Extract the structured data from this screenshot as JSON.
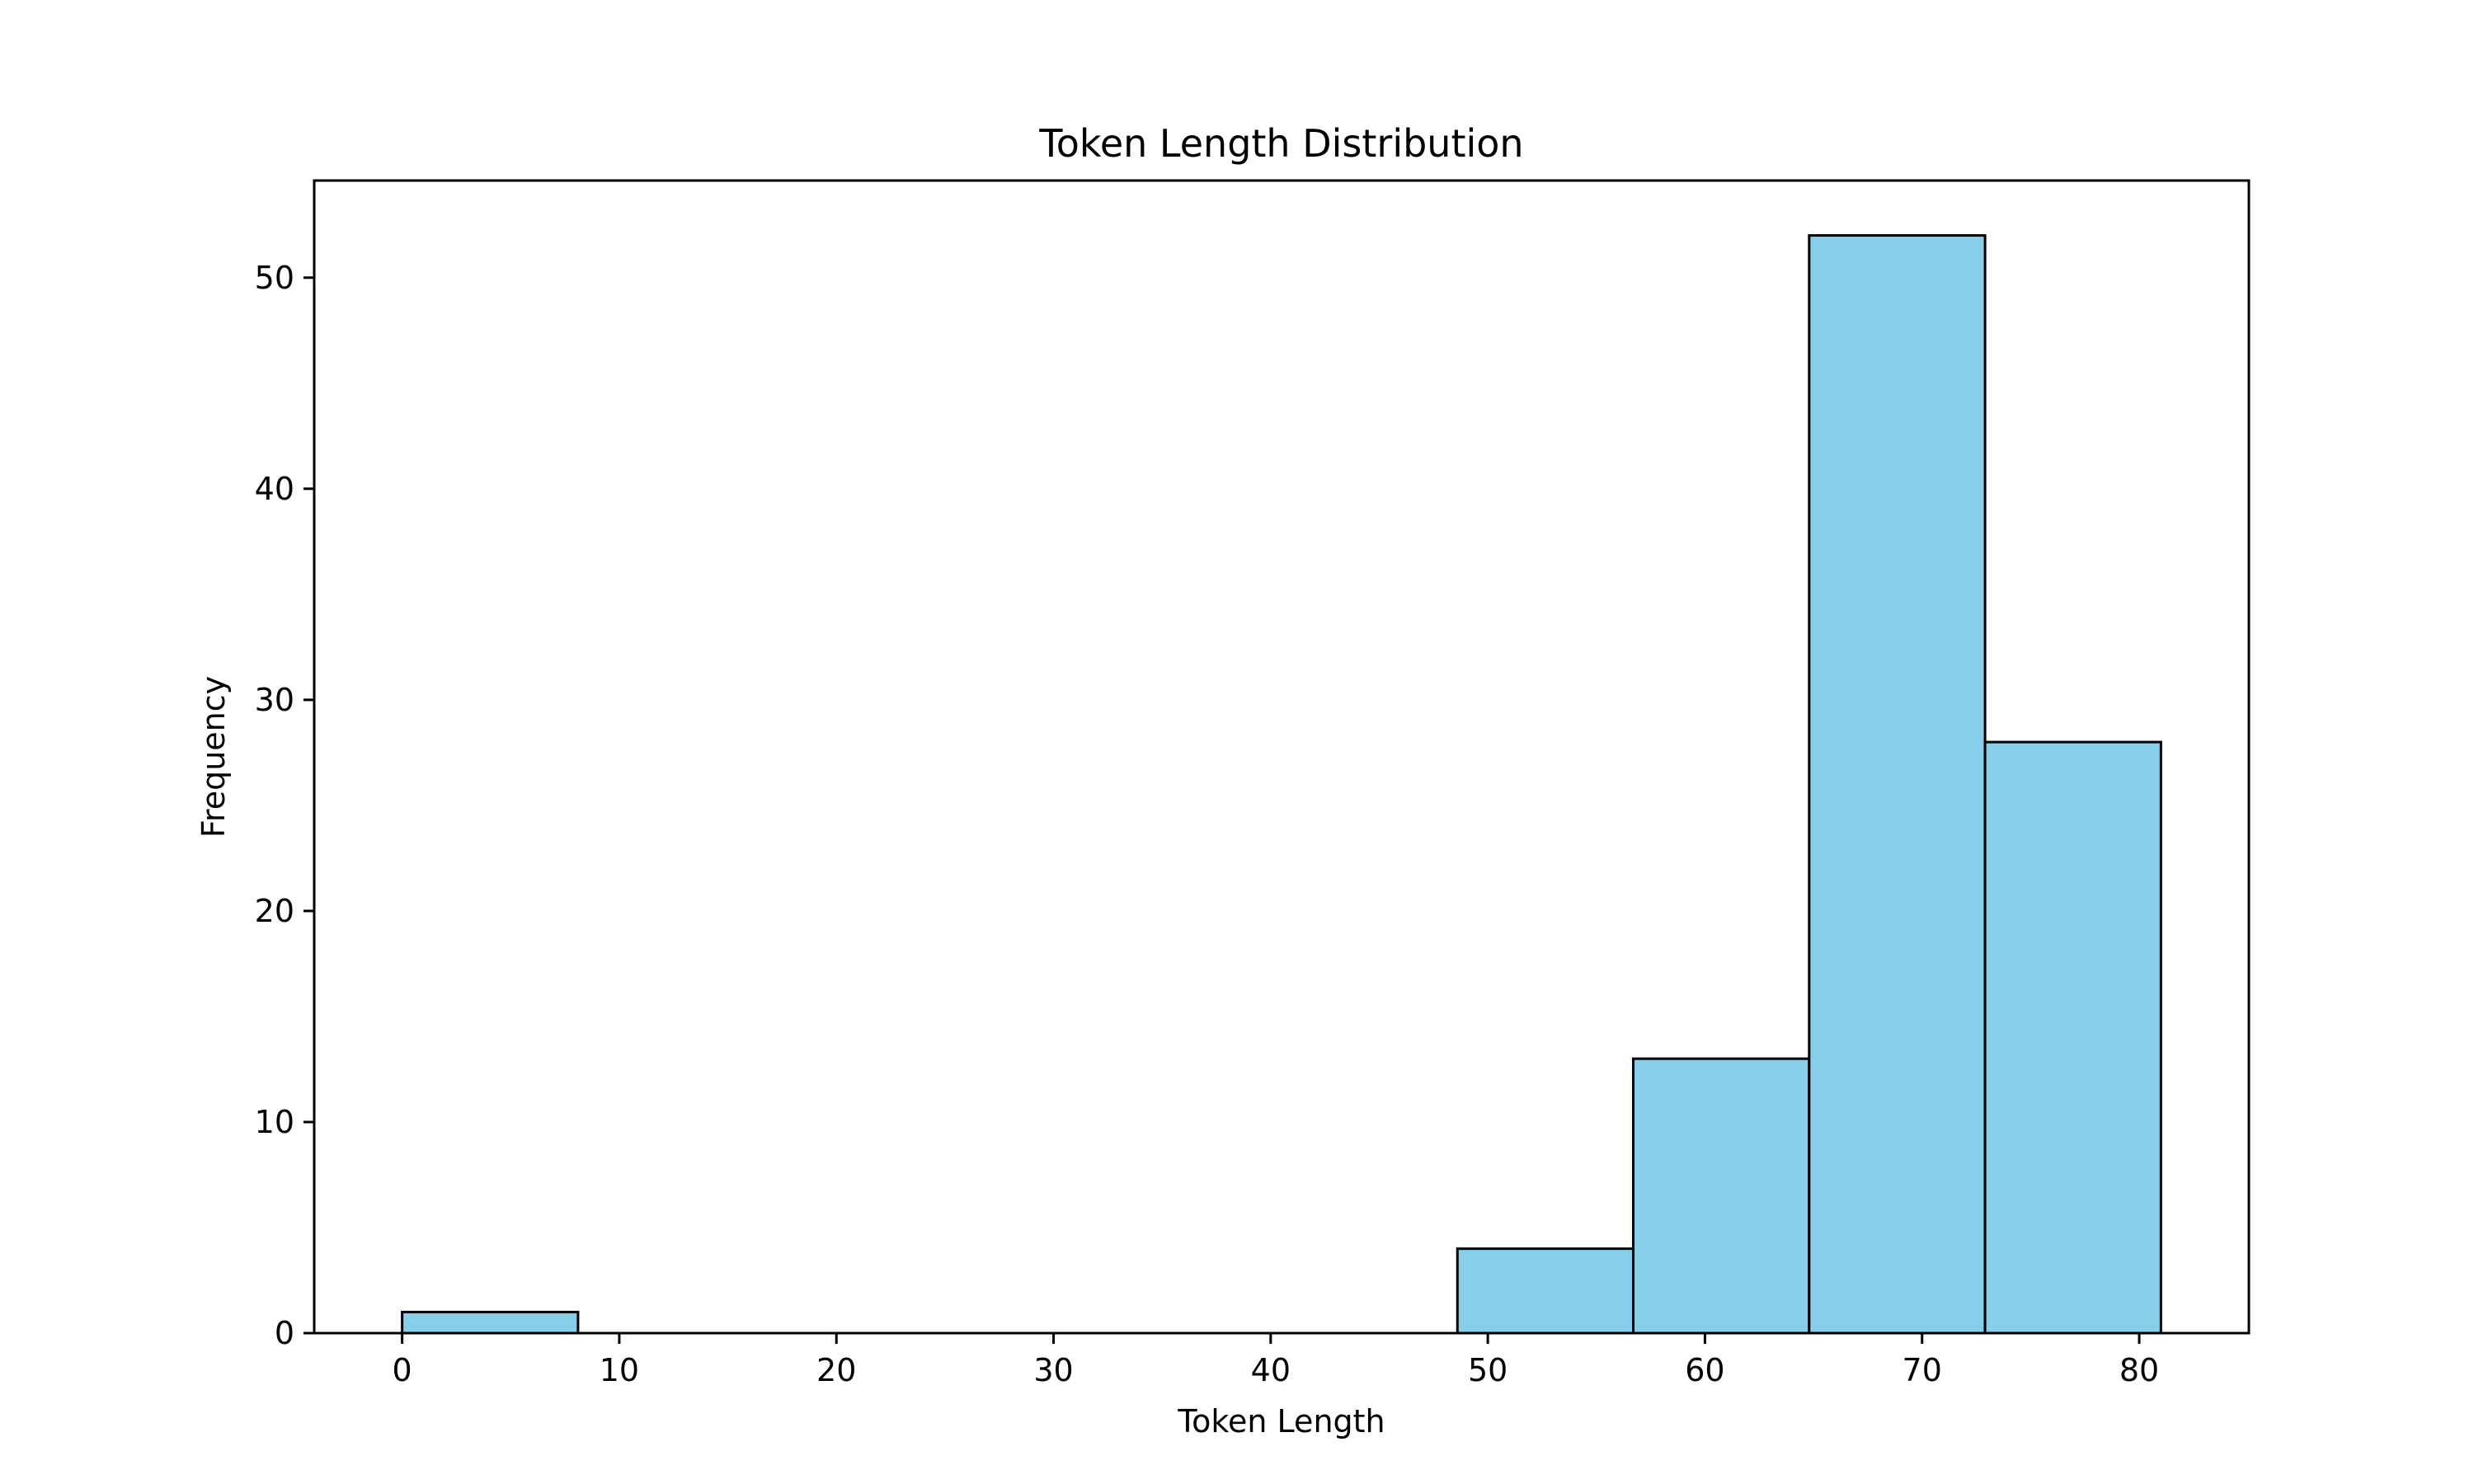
{
  "chart_data": {
    "type": "bar",
    "subtype": "histogram",
    "title": "Token Length Distribution",
    "xlabel": "Token Length",
    "ylabel": "Frequency",
    "xlim": [
      -4.05,
      85.05
    ],
    "ylim": [
      0,
      54.6
    ],
    "xticks": [
      0,
      10,
      20,
      30,
      40,
      50,
      60,
      70,
      80
    ],
    "yticks": [
      0,
      10,
      20,
      30,
      40,
      50
    ],
    "bins": [
      {
        "start": 0.0,
        "end": 8.1,
        "count": 1
      },
      {
        "start": 8.1,
        "end": 16.2,
        "count": 0
      },
      {
        "start": 16.2,
        "end": 24.3,
        "count": 0
      },
      {
        "start": 24.3,
        "end": 32.4,
        "count": 0
      },
      {
        "start": 32.4,
        "end": 40.5,
        "count": 0
      },
      {
        "start": 40.5,
        "end": 48.6,
        "count": 0
      },
      {
        "start": 48.6,
        "end": 56.7,
        "count": 4
      },
      {
        "start": 56.7,
        "end": 64.8,
        "count": 13
      },
      {
        "start": 64.8,
        "end": 72.9,
        "count": 52
      },
      {
        "start": 72.9,
        "end": 81.0,
        "count": 28
      }
    ],
    "grid": false,
    "legend": "none",
    "colors": {
      "bar_fill": "#87CEEB",
      "bar_edge": "#000000"
    }
  }
}
